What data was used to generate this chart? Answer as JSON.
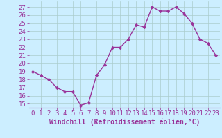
{
  "x": [
    0,
    1,
    2,
    3,
    4,
    5,
    6,
    7,
    8,
    9,
    10,
    11,
    12,
    13,
    14,
    15,
    16,
    17,
    18,
    19,
    20,
    21,
    22,
    23
  ],
  "y": [
    19,
    18.5,
    18,
    17,
    16.5,
    16.5,
    14.8,
    15.1,
    18.5,
    19.8,
    22,
    22,
    23,
    24.8,
    24.5,
    27,
    26.5,
    26.5,
    27,
    26.2,
    25,
    23,
    22.5,
    21
  ],
  "line_color": "#993399",
  "marker": "D",
  "marker_size": 2.2,
  "bg_color": "#cceeff",
  "grid_color": "#aacccc",
  "xlabel": "Windchill (Refroidissement éolien,°C)",
  "xlabel_fontsize": 7,
  "ytick_values": [
    15,
    16,
    17,
    18,
    19,
    20,
    21,
    22,
    23,
    24,
    25,
    26,
    27
  ],
  "ylim": [
    14.5,
    27.7
  ],
  "xlim": [
    -0.5,
    23.5
  ],
  "tick_fontsize": 6.5,
  "line_width": 1.0
}
